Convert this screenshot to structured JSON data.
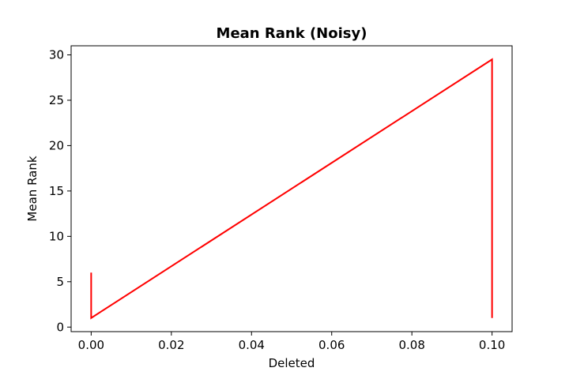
{
  "chart_data": {
    "type": "line",
    "title": "Mean Rank (Noisy)",
    "xlabel": "Deleted",
    "ylabel": "Mean Rank",
    "xlim": [
      -0.005,
      0.105
    ],
    "ylim": [
      -0.5,
      31.0
    ],
    "xticks": [
      0.0,
      0.02,
      0.04,
      0.06,
      0.08,
      0.1
    ],
    "xtick_labels": [
      "0.00",
      "0.02",
      "0.04",
      "0.06",
      "0.08",
      "0.10"
    ],
    "yticks": [
      0,
      5,
      10,
      15,
      20,
      25,
      30
    ],
    "ytick_labels": [
      "0",
      "5",
      "10",
      "15",
      "20",
      "25",
      "30"
    ],
    "grid": false,
    "series": [
      {
        "color": "#ff0000",
        "x": [
          0.0,
          0.0,
          0.1,
          0.1
        ],
        "y": [
          6.0,
          1.0,
          29.5,
          1.0
        ]
      }
    ]
  }
}
